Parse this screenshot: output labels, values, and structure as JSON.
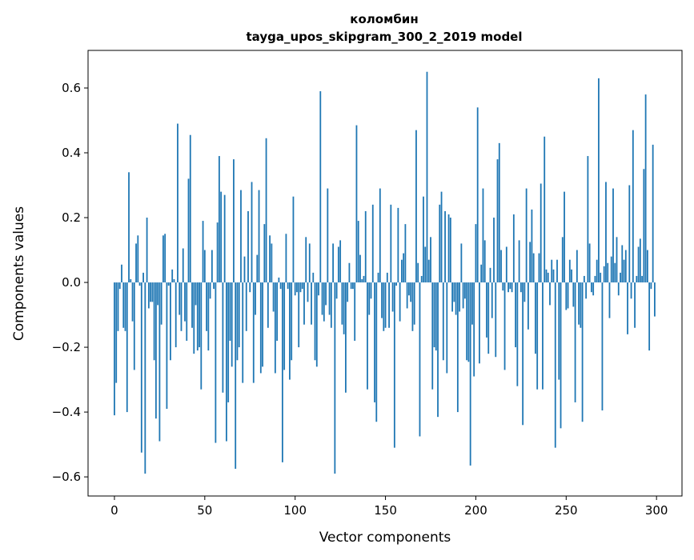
{
  "chart_data": {
    "type": "bar",
    "title_line1": "коломбин",
    "title_line2": "tayga_upos_skipgram_300_2_2019 model",
    "xlabel": "Vector components",
    "ylabel": "Components values",
    "xlim": [
      -14.6,
      314.1
    ],
    "ylim": [
      -0.659,
      0.716
    ],
    "xticks": [
      0,
      50,
      100,
      150,
      200,
      250,
      300
    ],
    "xtick_labels": [
      "0",
      "50",
      "100",
      "150",
      "200",
      "250",
      "300"
    ],
    "yticks": [
      -0.6,
      -0.4,
      -0.2,
      0.0,
      0.2,
      0.4,
      0.6
    ],
    "ytick_labels": [
      "−0.6",
      "−0.4",
      "−0.2",
      "0.0",
      "0.2",
      "0.4",
      "0.6"
    ],
    "grid": false,
    "bar_color": "#1f77b4",
    "values": [
      -0.41,
      -0.31,
      -0.15,
      -0.02,
      0.055,
      -0.14,
      -0.15,
      -0.4,
      0.34,
      0.01,
      -0.12,
      -0.27,
      0.12,
      0.145,
      -0.01,
      -0.525,
      0.03,
      -0.59,
      0.2,
      -0.08,
      -0.06,
      -0.06,
      -0.24,
      -0.42,
      -0.07,
      -0.49,
      -0.13,
      0.145,
      0.15,
      -0.39,
      -0.01,
      -0.24,
      0.04,
      0.01,
      -0.2,
      0.49,
      -0.1,
      -0.15,
      0.105,
      -0.12,
      -0.18,
      0.32,
      0.455,
      -0.14,
      -0.22,
      -0.07,
      -0.21,
      -0.2,
      -0.33,
      0.19,
      0.1,
      -0.15,
      -0.21,
      -0.05,
      0.1,
      -0.02,
      -0.495,
      0.185,
      0.39,
      0.28,
      -0.34,
      0.27,
      -0.49,
      -0.37,
      -0.18,
      -0.26,
      0.38,
      -0.575,
      -0.24,
      -0.2,
      0.285,
      -0.31,
      0.08,
      -0.15,
      0.22,
      -0.03,
      0.31,
      -0.31,
      -0.1,
      0.085,
      0.285,
      -0.28,
      -0.26,
      0.18,
      0.445,
      -0.14,
      0.145,
      0.12,
      -0.09,
      -0.28,
      -0.18,
      0.015,
      -0.02,
      -0.555,
      -0.27,
      0.15,
      -0.02,
      -0.3,
      -0.24,
      0.265,
      -0.04,
      -0.03,
      -0.2,
      -0.03,
      -0.02,
      -0.13,
      0.14,
      -0.06,
      0.12,
      -0.13,
      0.03,
      -0.24,
      -0.26,
      -0.04,
      0.59,
      -0.1,
      -0.12,
      -0.07,
      0.29,
      -0.1,
      -0.14,
      0.12,
      -0.59,
      -0.05,
      0.11,
      0.13,
      -0.13,
      -0.16,
      -0.34,
      -0.06,
      0.06,
      -0.02,
      -0.02,
      -0.18,
      0.485,
      0.19,
      0.085,
      0.01,
      0.02,
      0.22,
      -0.33,
      -0.1,
      -0.05,
      0.24,
      -0.37,
      -0.43,
      0.03,
      0.29,
      -0.11,
      -0.15,
      -0.14,
      0.03,
      -0.14,
      0.24,
      -0.09,
      -0.51,
      -0.01,
      0.23,
      -0.12,
      0.07,
      0.09,
      0.18,
      -0.08,
      -0.04,
      -0.06,
      -0.15,
      -0.13,
      0.47,
      0.06,
      -0.475,
      0.02,
      0.265,
      0.11,
      0.65,
      0.07,
      0.14,
      -0.33,
      -0.2,
      -0.21,
      -0.415,
      0.24,
      0.28,
      -0.24,
      0.22,
      -0.28,
      0.21,
      0.2,
      -0.09,
      -0.06,
      -0.1,
      -0.4,
      -0.09,
      0.12,
      -0.08,
      -0.05,
      -0.24,
      -0.245,
      -0.565,
      -0.13,
      -0.29,
      0.18,
      0.54,
      -0.25,
      0.055,
      0.29,
      0.13,
      -0.17,
      -0.22,
      0.045,
      -0.11,
      0.2,
      -0.23,
      0.38,
      0.43,
      0.1,
      -0.025,
      -0.27,
      0.11,
      -0.03,
      -0.02,
      -0.03,
      0.21,
      -0.2,
      -0.32,
      0.13,
      -0.03,
      -0.44,
      -0.06,
      0.29,
      -0.145,
      0.125,
      0.225,
      0.09,
      -0.22,
      -0.33,
      0.09,
      0.305,
      -0.33,
      0.45,
      0.04,
      0.03,
      -0.07,
      0.07,
      0.04,
      -0.51,
      0.07,
      -0.3,
      -0.45,
      0.14,
      0.28,
      -0.085,
      -0.08,
      0.07,
      0.04,
      -0.075,
      -0.37,
      0.1,
      -0.13,
      -0.14,
      -0.43,
      0.02,
      -0.05,
      0.39,
      0.12,
      -0.03,
      -0.04,
      0.02,
      0.07,
      0.63,
      0.03,
      -0.395,
      0.05,
      0.31,
      0.06,
      -0.11,
      0.08,
      0.29,
      0.06,
      0.14,
      -0.04,
      0.03,
      0.115,
      0.07,
      0.1,
      -0.16,
      0.3,
      -0.05,
      0.47,
      -0.14,
      0.02,
      0.11,
      0.135,
      0.02,
      0.35,
      0.58,
      0.1,
      -0.21,
      -0.02,
      0.425,
      -0.105
    ]
  }
}
